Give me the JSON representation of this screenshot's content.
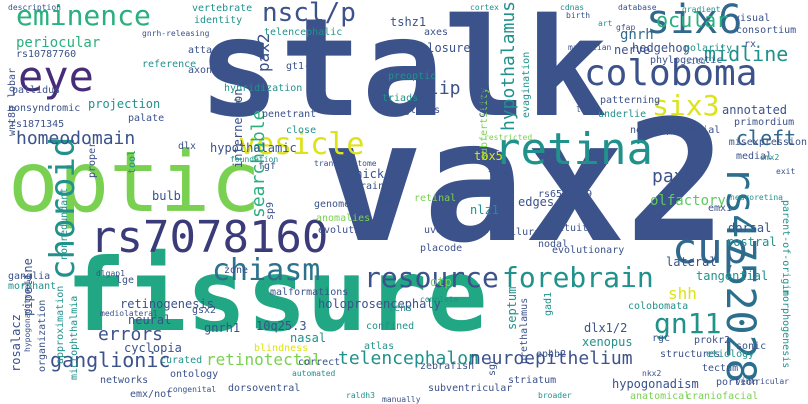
{
  "palette": {
    "navy": "#3b528b",
    "teal": "#21918c",
    "green": "#2ab07f",
    "lime": "#7ad151",
    "yellow": "#dde318",
    "purple": "#440154",
    "violet": "#472c7a",
    "slate": "#31688e",
    "mint": "#5ec962",
    "sea": "#27ad81"
  },
  "words": [
    {
      "text": "stalk",
      "color": "#3b528b"
    },
    {
      "text": "vax2",
      "color": "#3b528b"
    },
    {
      "text": "fissure",
      "color": "#21a784"
    },
    {
      "text": "optic",
      "color": "#7ad151"
    },
    {
      "text": "rs7078160",
      "color": "#3b3b7a"
    },
    {
      "text": "rs4752028",
      "color": "#2a6f8e"
    },
    {
      "text": "eye",
      "color": "#472c7a"
    },
    {
      "text": "six6",
      "color": "#31688e"
    },
    {
      "text": "coloboma",
      "color": "#3b528b"
    },
    {
      "text": "retina",
      "color": "#21918c"
    },
    {
      "text": "vesicle",
      "color": "#dde318"
    },
    {
      "text": "cup",
      "color": "#31688e"
    },
    {
      "text": "chiasm",
      "color": "#2c728e"
    },
    {
      "text": "resource",
      "color": "#3b528b"
    },
    {
      "text": "forebrain",
      "color": "#21918c"
    },
    {
      "text": "choroid",
      "color": "#21918c"
    },
    {
      "text": "eminence",
      "color": "#2ab07f"
    },
    {
      "text": "six3",
      "color": "#dde318"
    },
    {
      "text": "nscl/p",
      "color": "#3b528b"
    },
    {
      "text": "gn11",
      "color": "#21918c"
    },
    {
      "text": "hypothalamus",
      "color": "#21918c"
    },
    {
      "text": "midline",
      "color": "#21918c"
    },
    {
      "text": "searchable",
      "color": "#2ab07f"
    },
    {
      "text": "ocular",
      "color": "#2ab07f"
    },
    {
      "text": "homeodomain",
      "color": "#3b528b"
    },
    {
      "text": "ganglionic",
      "color": "#3b528b"
    },
    {
      "text": "retinotectal",
      "color": "#7ad151"
    },
    {
      "text": "telencephalon",
      "color": "#21918c"
    },
    {
      "text": "neuroepithelium",
      "color": "#3b528b"
    },
    {
      "text": "cleft",
      "color": "#31688e"
    },
    {
      "text": "lip",
      "color": "#3b528b"
    },
    {
      "text": "errors",
      "color": "#3b528b"
    },
    {
      "text": "pax6",
      "color": "#3b528b"
    },
    {
      "text": "pax2",
      "color": "#3b528b"
    },
    {
      "text": "periocular",
      "color": "#2ab07f"
    },
    {
      "text": "shh",
      "color": "#dde318"
    },
    {
      "text": "gnrh",
      "color": "#31688e"
    },
    {
      "text": "hypothalamic",
      "color": "#3b528b"
    },
    {
      "text": "annotated",
      "color": "#3b528b"
    },
    {
      "text": "olfactory",
      "color": "#5ec962"
    },
    {
      "text": "tangential",
      "color": "#21918c"
    },
    {
      "text": "dorsal",
      "color": "#3b528b"
    },
    {
      "text": "rostral",
      "color": "#21918c"
    },
    {
      "text": "lateral",
      "color": "#3b528b"
    },
    {
      "text": "closure",
      "color": "#3b528b"
    },
    {
      "text": "hedgehog",
      "color": "#3b528b"
    },
    {
      "text": "axes",
      "color": "#3b528b"
    },
    {
      "text": "tshz1",
      "color": "#3b528b"
    },
    {
      "text": "rs10787760",
      "color": "#3b528b"
    },
    {
      "text": "rs1871345",
      "color": "#3b528b"
    },
    {
      "text": "nonsyndromic",
      "color": "#3b528b"
    },
    {
      "text": "projection",
      "color": "#21918c"
    },
    {
      "text": "palate",
      "color": "#3b528b"
    },
    {
      "text": "neural",
      "color": "#3b528b"
    },
    {
      "text": "bulb",
      "color": "#3b528b"
    },
    {
      "text": "cyclopia",
      "color": "#3b528b"
    },
    {
      "text": "gnrh1",
      "color": "#3b528b"
    },
    {
      "text": "10q25.3",
      "color": "#3b528b"
    },
    {
      "text": "nasal",
      "color": "#21918c"
    },
    {
      "text": "xenopus",
      "color": "#21918c"
    },
    {
      "text": "dlx1/2",
      "color": "#3b528b"
    },
    {
      "text": "septum",
      "color": "#21918c"
    },
    {
      "text": "holoprosencephaly",
      "color": "#3b528b"
    },
    {
      "text": "retinogenesis",
      "color": "#3b528b"
    },
    {
      "text": "gsx2",
      "color": "#3b528b"
    },
    {
      "text": "rosalacz",
      "color": "#3b528b"
    },
    {
      "text": "pipeline",
      "color": "#3b528b"
    },
    {
      "text": "microphthalmia",
      "color": "#21918c"
    },
    {
      "text": "interneuron",
      "color": "#3b528b"
    },
    {
      "text": "vertebrate",
      "color": "#21918c"
    },
    {
      "text": "telencephalic",
      "color": "#21918c"
    },
    {
      "text": "subfertility",
      "color": "#7ad151"
    },
    {
      "text": "triads",
      "color": "#21918c"
    },
    {
      "text": "preoptic",
      "color": "#21918c"
    },
    {
      "text": "globus",
      "color": "#3b528b"
    },
    {
      "text": "hypogonadism",
      "color": "#3b528b"
    },
    {
      "text": "colobomata",
      "color": "#21918c"
    },
    {
      "text": "tbx5",
      "color": "#dde318"
    },
    {
      "text": "tfs",
      "color": "#3b528b"
    },
    {
      "text": "edges",
      "color": "#3b528b"
    },
    {
      "text": "chick",
      "color": "#3b528b"
    },
    {
      "text": "brain",
      "color": "#3b528b"
    },
    {
      "text": "nlz1",
      "color": "#21918c"
    },
    {
      "text": "nodal",
      "color": "#3b528b"
    },
    {
      "text": "evolutionary",
      "color": "#3b528b"
    },
    {
      "text": "pituitary",
      "color": "#3b528b"
    },
    {
      "text": "uveal",
      "color": "#3b528b"
    },
    {
      "text": "plink",
      "color": "#3b528b"
    },
    {
      "text": "failure",
      "color": "#3b528b"
    },
    {
      "text": "placode",
      "color": "#3b528b"
    },
    {
      "text": "emx1",
      "color": "#3b528b"
    },
    {
      "text": "rs6585429",
      "color": "#3b528b"
    },
    {
      "text": "neuroepithelial",
      "color": "#3b528b"
    },
    {
      "text": "patterning",
      "color": "#3b528b"
    },
    {
      "text": "nerve",
      "color": "#3b528b"
    },
    {
      "text": "visual",
      "color": "#3b528b"
    },
    {
      "text": "medial",
      "color": "#3b528b"
    },
    {
      "text": "misexpression",
      "color": "#3b528b"
    },
    {
      "text": "sonic",
      "color": "#3b528b"
    },
    {
      "text": "tectum",
      "color": "#3b528b"
    },
    {
      "text": "structures",
      "color": "#3b528b"
    },
    {
      "text": "etiology",
      "color": "#21918c"
    },
    {
      "text": "prokr2",
      "color": "#3b528b"
    },
    {
      "text": "rgc",
      "color": "#3b528b"
    },
    {
      "text": "ephb2",
      "color": "#3b528b"
    },
    {
      "text": "gt1-7",
      "color": "#3b528b"
    },
    {
      "text": "mge",
      "color": "#3b528b"
    },
    {
      "text": "reference",
      "color": "#21918c"
    },
    {
      "text": "atta",
      "color": "#3b528b"
    },
    {
      "text": "evolution",
      "color": "#3b528b"
    },
    {
      "text": "genomes",
      "color": "#3b528b"
    },
    {
      "text": "anomalies",
      "color": "#7ad151"
    },
    {
      "text": "sp8",
      "color": "#3b528b"
    },
    {
      "text": "sp9",
      "color": "#3b528b"
    },
    {
      "text": "fgf",
      "color": "#3b528b"
    },
    {
      "text": "dlx",
      "color": "#3b528b"
    },
    {
      "text": "retinal",
      "color": "#7ad151"
    },
    {
      "text": "curated",
      "color": "#21918c"
    },
    {
      "text": "malformations",
      "color": "#3b528b"
    },
    {
      "text": "ontology",
      "color": "#3b528b"
    },
    {
      "text": "networks",
      "color": "#3b528b"
    },
    {
      "text": "correct",
      "color": "#3b528b"
    },
    {
      "text": "atlas",
      "color": "#21918c"
    },
    {
      "text": "confined",
      "color": "#21918c"
    },
    {
      "text": "blindness",
      "color": "#dde318"
    },
    {
      "text": "zebrafish",
      "color": "#3b528b"
    },
    {
      "text": "prethalamus",
      "color": "#3b528b"
    },
    {
      "text": "striatum",
      "color": "#3b528b"
    },
    {
      "text": "subventricular",
      "color": "#3b528b"
    },
    {
      "text": "dorsoventral",
      "color": "#3b528b"
    },
    {
      "text": "emx/not",
      "color": "#3b528b"
    },
    {
      "text": "ganglia",
      "color": "#3b528b"
    },
    {
      "text": "morphant",
      "color": "#21918c"
    },
    {
      "text": "lge",
      "color": "#3b528b"
    },
    {
      "text": "axons",
      "color": "#3b528b"
    },
    {
      "text": "hybridization",
      "color": "#21918c"
    },
    {
      "text": "identity",
      "color": "#21918c"
    },
    {
      "text": "pallidus",
      "color": "#3b528b"
    },
    {
      "text": "lobar",
      "color": "#3b528b"
    },
    {
      "text": "wnt8b",
      "color": "#3b528b"
    },
    {
      "text": "proper",
      "color": "#3b528b"
    },
    {
      "text": "tool",
      "color": "#21918c"
    },
    {
      "text": "nonredundant",
      "color": "#21918c"
    },
    {
      "text": "penetrant",
      "color": "#3b528b"
    },
    {
      "text": "close",
      "color": "#21918c"
    },
    {
      "text": "underlie",
      "color": "#21918c"
    },
    {
      "text": "polarity",
      "color": "#21918c"
    },
    {
      "text": "phylogenetic",
      "color": "#3b528b"
    },
    {
      "text": "consortium",
      "color": "#3b528b"
    },
    {
      "text": "primordium",
      "color": "#3b528b"
    },
    {
      "text": "parent-of-origin",
      "color": "#21918c"
    },
    {
      "text": "morphogenesis",
      "color": "#21918c"
    },
    {
      "text": "anatomical",
      "color": "#7ad151"
    },
    {
      "text": "craniofacial",
      "color": "#7ad151"
    },
    {
      "text": "broader",
      "color": "#21918c"
    },
    {
      "text": "raldh3",
      "color": "#21918c"
    },
    {
      "text": "congenital",
      "color": "#3b528b"
    },
    {
      "text": "approximation",
      "color": "#21918c"
    },
    {
      "text": "organization",
      "color": "#3b528b"
    },
    {
      "text": "gnrh-releasing",
      "color": "#3b528b"
    },
    {
      "text": "callosum",
      "color": "#3b528b"
    },
    {
      "text": "evagination",
      "color": "#21918c"
    },
    {
      "text": "ob",
      "color": "#3b528b"
    },
    {
      "text": "transcriptome",
      "color": "#3b528b"
    },
    {
      "text": "foundation",
      "color": "#21918c"
    },
    {
      "text": "gradient",
      "color": "#21918c"
    },
    {
      "text": "database",
      "color": "#3b528b"
    },
    {
      "text": "mammalian",
      "color": "#3b528b"
    },
    {
      "text": "rx",
      "color": "#3b528b"
    },
    {
      "text": "emx2",
      "color": "#21918c"
    },
    {
      "text": "exit",
      "color": "#3b528b"
    },
    {
      "text": "lhx6",
      "color": "#3b528b"
    },
    {
      "text": "situ",
      "color": "#21918c"
    },
    {
      "text": "birth",
      "color": "#3b528b"
    },
    {
      "text": "mediolateral",
      "color": "#3b528b"
    },
    {
      "text": "ventricular",
      "color": "#3b528b"
    },
    {
      "text": "manually",
      "color": "#3b528b"
    },
    {
      "text": "complete",
      "color": "#21918c"
    },
    {
      "text": "restricted",
      "color": "#7ad151"
    },
    {
      "text": "automated",
      "color": "#21918c"
    },
    {
      "text": "cortex",
      "color": "#21918c"
    },
    {
      "text": "description",
      "color": "#3b528b"
    },
    {
      "text": "neuroretina",
      "color": "#21918c"
    },
    {
      "text": "zone",
      "color": "#3b528b"
    },
    {
      "text": "sgc",
      "color": "#3b528b"
    },
    {
      "text": "otp",
      "color": "#7ad151"
    },
    {
      "text": "lens",
      "color": "#21918c"
    },
    {
      "text": "gad1",
      "color": "#21918c"
    },
    {
      "text": "hypogonadotropic",
      "color": "#3b528b"
    },
    {
      "text": "portion",
      "color": "#3b528b"
    },
    {
      "text": "cdnas",
      "color": "#21918c"
    },
    {
      "text": "dlgap1",
      "color": "#3b528b"
    },
    {
      "text": "gfap",
      "color": "#3b528b"
    },
    {
      "text": "nkx2",
      "color": "#3b528b"
    },
    {
      "text": "art",
      "color": "#21918c"
    }
  ]
}
